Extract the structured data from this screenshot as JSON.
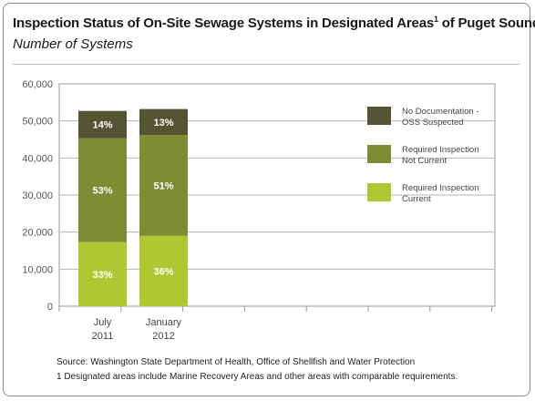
{
  "header": {
    "title_main": "Inspection Status of On-Site Sewage Systems in Designated Areas",
    "title_sup": "1",
    "title_tail": " of Puget Sound",
    "subtitle": "Number of Systems"
  },
  "notes": {
    "source": "Source: Washington State Department of Health, Office of Shellfish and Water Protection",
    "footnote": "1 Designated areas include Marine Recovery Areas and other areas with comparable requirements."
  },
  "chart_data": {
    "type": "bar",
    "stacked": true,
    "categories": [
      [
        "July",
        "2011"
      ],
      [
        "January",
        "2012"
      ]
    ],
    "ylim": [
      0,
      60000
    ],
    "yticks": [
      0,
      10000,
      20000,
      30000,
      40000,
      50000,
      60000
    ],
    "ytick_labels": [
      "0",
      "10,000",
      "20,000",
      "30,000",
      "40,000",
      "50,000",
      "60,000"
    ],
    "grid": true,
    "legend_placement": "right",
    "series": [
      {
        "name": "Required Inspection Current",
        "color": "#afc832",
        "values": [
          17300,
          19000
        ],
        "labels": [
          "33%",
          "36%"
        ]
      },
      {
        "name": "Required Inspection Not Current",
        "color": "#7e8c32",
        "values": [
          28000,
          27200
        ],
        "labels": [
          "53%",
          "51%"
        ]
      },
      {
        "name": "No Documentation - OSS Suspected",
        "color": "#545432",
        "values": [
          7400,
          7000
        ],
        "labels": [
          "14%",
          "13%"
        ]
      }
    ],
    "legend": [
      {
        "lines": [
          "No Documentation -",
          "OSS Suspected"
        ],
        "color": "#545432"
      },
      {
        "lines": [
          "Required Inspection",
          "Not Current"
        ],
        "color": "#7e8c32"
      },
      {
        "lines": [
          "Required Inspection",
          "Current"
        ],
        "color": "#afc832"
      }
    ]
  }
}
